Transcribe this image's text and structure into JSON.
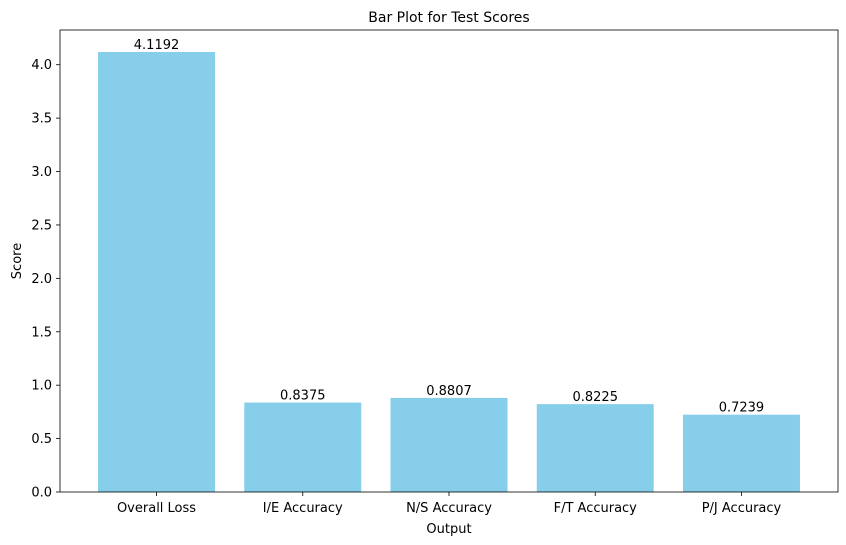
{
  "chart_data": {
    "type": "bar",
    "title": "Bar Plot for Test Scores",
    "xlabel": "Output",
    "ylabel": "Score",
    "categories": [
      "Overall Loss",
      "I/E Accuracy",
      "N/S Accuracy",
      "F/T Accuracy",
      "P/J Accuracy"
    ],
    "values": [
      4.1192,
      0.8375,
      0.8807,
      0.8225,
      0.7239
    ],
    "value_labels": [
      "4.1192",
      "0.8375",
      "0.8807",
      "0.8225",
      "0.7239"
    ],
    "ylim": [
      0,
      4.325
    ],
    "yticks": [
      0.0,
      0.5,
      1.0,
      1.5,
      2.0,
      2.5,
      3.0,
      3.5,
      4.0
    ],
    "ytick_labels": [
      "0.0",
      "0.5",
      "1.0",
      "1.5",
      "2.0",
      "2.5",
      "3.0",
      "3.5",
      "4.0"
    ],
    "grid": false,
    "legend": "none",
    "bar_color": "#87ceeb"
  }
}
